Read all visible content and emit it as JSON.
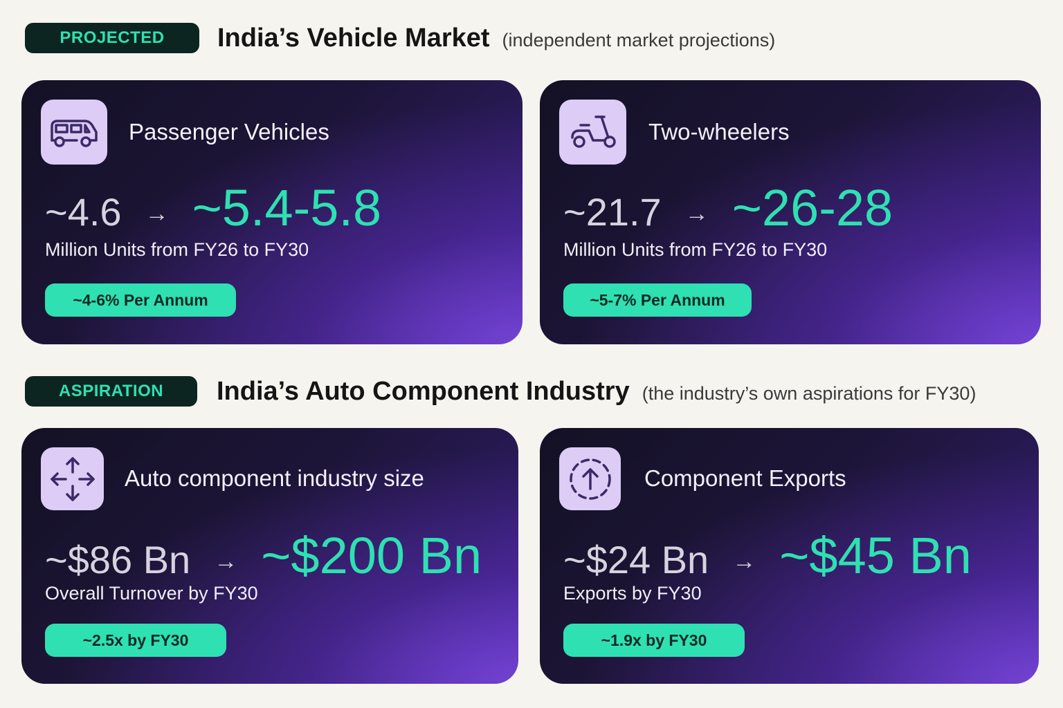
{
  "projected": {
    "tag": "PROJECTED",
    "title": "India’s Vehicle Market",
    "subtitle": "(independent market projections)"
  },
  "aspiration": {
    "tag": "ASPIRATION",
    "title": "India’s Auto Component Industry",
    "subtitle": "(the industry’s own aspirations for FY30)"
  },
  "cards": [
    {
      "icon": "van-icon",
      "title": "Passenger Vehicles",
      "from": "~4.6",
      "arrow": "→",
      "to": "~5.4-5.8",
      "desc": "Million Units from FY26 to FY30",
      "pill": "~4-6% Per Annum"
    },
    {
      "icon": "scooter-icon",
      "title": "Two-wheelers",
      "from": "~21.7",
      "arrow": "→",
      "to": "~26-28",
      "desc": "Million Units from FY26 to FY30",
      "pill": "~5-7% Per Annum"
    },
    {
      "icon": "expand-arrows-icon",
      "title": "Auto component industry size",
      "from": "~$86 Bn",
      "arrow": "→",
      "to": "~$200 Bn",
      "desc": "Overall Turnover by FY30",
      "pill": "~2.5x by FY30"
    },
    {
      "icon": "upload-circle-icon",
      "title": "Component Exports",
      "from": "~$24 Bn",
      "arrow": "→",
      "to": "~$45 Bn",
      "desc": "Exports by FY30",
      "pill": "~1.9x by FY30"
    }
  ],
  "colors": {
    "accent": "#2fe0b2",
    "tag_bg": "#0d2520",
    "icon_bg": "#dcccf6",
    "icon_stroke": "#3b2a66",
    "page_bg": "#f6f4ef"
  }
}
